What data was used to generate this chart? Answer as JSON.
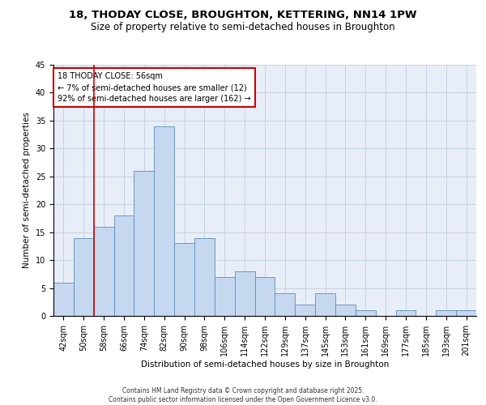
{
  "title_line1": "18, THODAY CLOSE, BROUGHTON, KETTERING, NN14 1PW",
  "title_line2": "Size of property relative to semi-detached houses in Broughton",
  "xlabel": "Distribution of semi-detached houses by size in Broughton",
  "ylabel": "Number of semi-detached properties",
  "categories": [
    "42sqm",
    "50sqm",
    "58sqm",
    "66sqm",
    "74sqm",
    "82sqm",
    "90sqm",
    "98sqm",
    "106sqm",
    "114sqm",
    "122sqm",
    "129sqm",
    "137sqm",
    "145sqm",
    "153sqm",
    "161sqm",
    "169sqm",
    "177sqm",
    "185sqm",
    "193sqm",
    "201sqm"
  ],
  "values": [
    6,
    14,
    16,
    18,
    26,
    34,
    13,
    14,
    7,
    8,
    7,
    4,
    2,
    4,
    2,
    1,
    0,
    1,
    0,
    1,
    1
  ],
  "bar_color": "#c5d8f0",
  "bar_edge_color": "#5b8db8",
  "property_size": "56sqm",
  "pct_smaller": 7,
  "count_smaller": 12,
  "pct_larger": 92,
  "count_larger": 162,
  "annotation_text": "18 THODAY CLOSE: 56sqm\n← 7% of semi-detached houses are smaller (12)\n92% of semi-detached houses are larger (162) →",
  "ylim": [
    0,
    45
  ],
  "yticks": [
    0,
    5,
    10,
    15,
    20,
    25,
    30,
    35,
    40,
    45
  ],
  "red_line_color": "#cc0000",
  "background_color": "#e8eef8",
  "footer_text": "Contains HM Land Registry data © Crown copyright and database right 2025.\nContains public sector information licensed under the Open Government Licence v3.0.",
  "title_fontsize": 9.5,
  "subtitle_fontsize": 8.5,
  "axis_label_fontsize": 7.5,
  "tick_fontsize": 7,
  "annotation_fontsize": 7,
  "footer_fontsize": 5.5
}
